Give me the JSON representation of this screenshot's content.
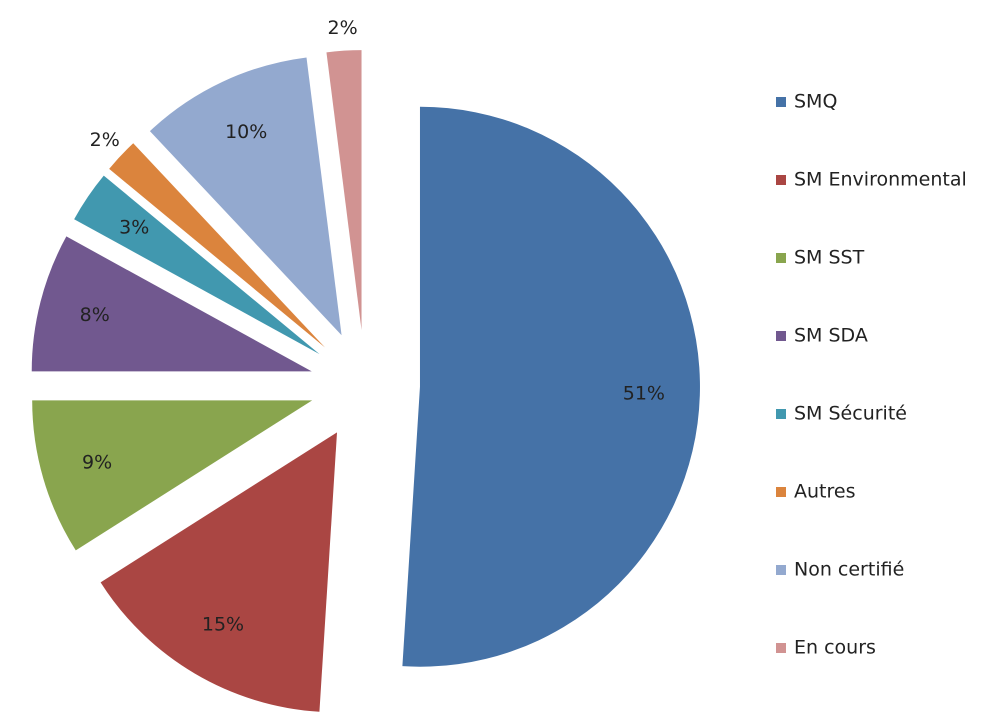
{
  "chart_data": {
    "type": "pie",
    "categories": [
      "SMQ",
      "SM Environmental",
      "SM SST",
      "SM SDA",
      "SM Sécurité",
      "Autres",
      "Non certifié",
      "En cours"
    ],
    "values": [
      51,
      15,
      9,
      8,
      3,
      2,
      10,
      2
    ],
    "value_labels": [
      "51%",
      "15%",
      "9%",
      "8%",
      "3%",
      "2%",
      "10%",
      "2%"
    ],
    "colors": [
      "#4572a7",
      "#aa4643",
      "#89a54e",
      "#71588f",
      "#4198af",
      "#db843d",
      "#93a9cf",
      "#d19392"
    ],
    "exploded": true,
    "legend": "right"
  }
}
